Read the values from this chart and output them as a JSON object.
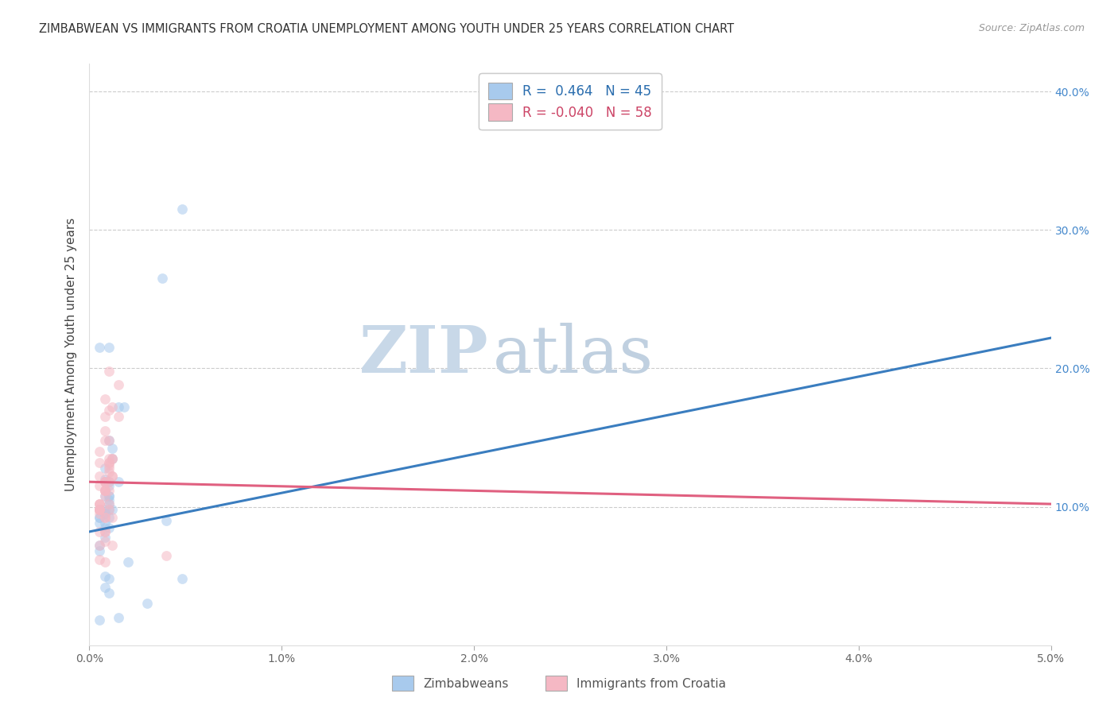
{
  "title": "ZIMBABWEAN VS IMMIGRANTS FROM CROATIA UNEMPLOYMENT AMONG YOUTH UNDER 25 YEARS CORRELATION CHART",
  "source": "Source: ZipAtlas.com",
  "ylabel": "Unemployment Among Youth under 25 years",
  "series": [
    {
      "name": "Zimbabweans",
      "color": "#a8caed",
      "line_color": "#3a7dbf",
      "R": 0.464,
      "N": 45,
      "trend_x0": 0.0,
      "trend_y0": 0.082,
      "trend_x1": 0.05,
      "trend_y1": 0.222,
      "x": [
        0.0008,
        0.001,
        0.0005,
        0.0008,
        0.001,
        0.001,
        0.0005,
        0.0008,
        0.0012,
        0.0008,
        0.001,
        0.0005,
        0.0008,
        0.0012,
        0.001,
        0.0008,
        0.001,
        0.0005,
        0.0008,
        0.001,
        0.0012,
        0.0008,
        0.001,
        0.0015,
        0.001,
        0.0008,
        0.0005,
        0.001,
        0.0008,
        0.0005,
        0.0015,
        0.001,
        0.002,
        0.0008,
        0.001,
        0.0048,
        0.0038,
        0.0018,
        0.0008,
        0.001,
        0.004,
        0.0048,
        0.003,
        0.0015,
        0.0005
      ],
      "y": [
        0.12,
        0.215,
        0.215,
        0.128,
        0.118,
        0.105,
        0.092,
        0.098,
        0.135,
        0.118,
        0.098,
        0.092,
        0.085,
        0.098,
        0.108,
        0.095,
        0.115,
        0.088,
        0.078,
        0.102,
        0.142,
        0.108,
        0.092,
        0.118,
        0.148,
        0.095,
        0.072,
        0.108,
        0.088,
        0.068,
        0.172,
        0.085,
        0.06,
        0.042,
        0.038,
        0.315,
        0.265,
        0.172,
        0.05,
        0.048,
        0.09,
        0.048,
        0.03,
        0.02,
        0.018
      ]
    },
    {
      "name": "Immigrants from Croatia",
      "color": "#f5b8c4",
      "line_color": "#e06080",
      "R": -0.04,
      "N": 58,
      "trend_x0": 0.0,
      "trend_y0": 0.118,
      "trend_x1": 0.05,
      "trend_y1": 0.102,
      "x": [
        0.0005,
        0.0008,
        0.001,
        0.0005,
        0.0008,
        0.0005,
        0.0008,
        0.001,
        0.0005,
        0.0008,
        0.0005,
        0.0008,
        0.001,
        0.0005,
        0.0008,
        0.001,
        0.0005,
        0.0008,
        0.0005,
        0.001,
        0.0012,
        0.0008,
        0.0005,
        0.001,
        0.0012,
        0.0008,
        0.0005,
        0.001,
        0.0008,
        0.0005,
        0.0012,
        0.0008,
        0.001,
        0.0005,
        0.0008,
        0.0015,
        0.0012,
        0.001,
        0.0005,
        0.0008,
        0.001,
        0.0008,
        0.0012,
        0.001,
        0.0008,
        0.0005,
        0.001,
        0.0008,
        0.0005,
        0.0012,
        0.0008,
        0.0005,
        0.001,
        0.0012,
        0.0008,
        0.0015,
        0.004,
        0.0005
      ],
      "y": [
        0.14,
        0.178,
        0.17,
        0.122,
        0.155,
        0.132,
        0.112,
        0.125,
        0.102,
        0.118,
        0.098,
        0.148,
        0.13,
        0.102,
        0.112,
        0.198,
        0.115,
        0.165,
        0.102,
        0.148,
        0.122,
        0.112,
        0.095,
        0.135,
        0.122,
        0.108,
        0.098,
        0.132,
        0.112,
        0.098,
        0.135,
        0.118,
        0.132,
        0.098,
        0.118,
        0.188,
        0.135,
        0.112,
        0.098,
        0.092,
        0.128,
        0.082,
        0.092,
        0.118,
        0.075,
        0.082,
        0.102,
        0.092,
        0.062,
        0.172,
        0.082,
        0.072,
        0.098,
        0.072,
        0.06,
        0.165,
        0.065,
        0.098
      ]
    }
  ],
  "xlim": [
    0.0,
    0.05
  ],
  "ylim": [
    0.0,
    0.42
  ],
  "yticks": [
    0.0,
    0.1,
    0.2,
    0.3,
    0.4
  ],
  "ytick_labels_right": [
    "",
    "10.0%",
    "20.0%",
    "30.0%",
    "40.0%"
  ],
  "xticks": [
    0.0,
    0.01,
    0.02,
    0.03,
    0.04,
    0.05
  ],
  "xtick_labels": [
    "0.0%",
    "1.0%",
    "2.0%",
    "3.0%",
    "4.0%",
    "5.0%"
  ],
  "background_color": "#ffffff",
  "grid_color": "#cccccc",
  "watermark_zip": "ZIP",
  "watermark_atlas": "atlas",
  "watermark_color_zip": "#c8d8e8",
  "watermark_color_atlas": "#c0d0e0",
  "scatter_size": 85,
  "scatter_alpha": 0.55
}
